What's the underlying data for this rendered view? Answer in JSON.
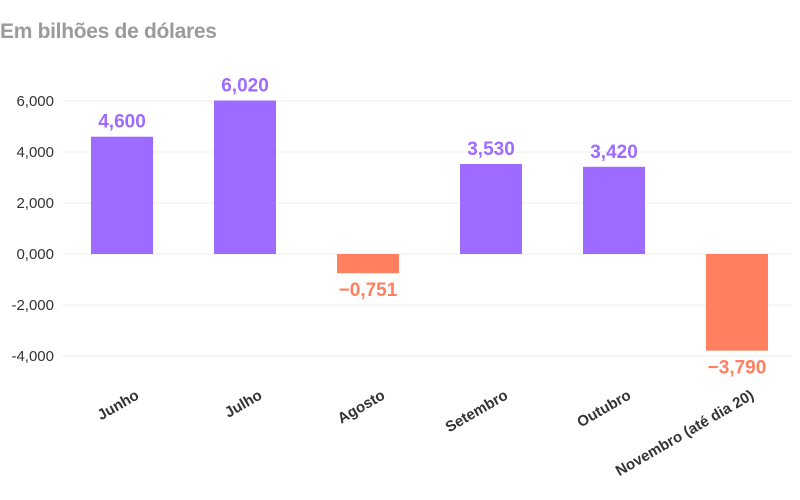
{
  "chart_data": {
    "type": "bar",
    "title": "",
    "subtitle": "Em bilhões de dólares",
    "xlabel": "",
    "ylabel": "",
    "categories": [
      "Junho",
      "Julho",
      "Agosto",
      "Setembro",
      "Outubro",
      "Novembro (até dia 20)"
    ],
    "values": [
      4.6,
      6.02,
      -0.751,
      3.53,
      3.42,
      -3.79
    ],
    "value_labels": [
      "4,600",
      "6,020",
      "−0,751",
      "3,530",
      "3,420",
      "−3,790"
    ],
    "yticks": [
      6,
      4,
      2,
      0,
      -2,
      -4
    ],
    "ytick_labels": [
      "6,000",
      "4,000",
      "2,000",
      "0,000",
      "-2,000",
      "-4,000"
    ],
    "ylim": [
      -4.6,
      6.6
    ],
    "grid": true,
    "legend": "none",
    "colors": {
      "positive": "#9d6bff",
      "negative": "#ff7f5f",
      "grid": "#eeeeee"
    }
  }
}
